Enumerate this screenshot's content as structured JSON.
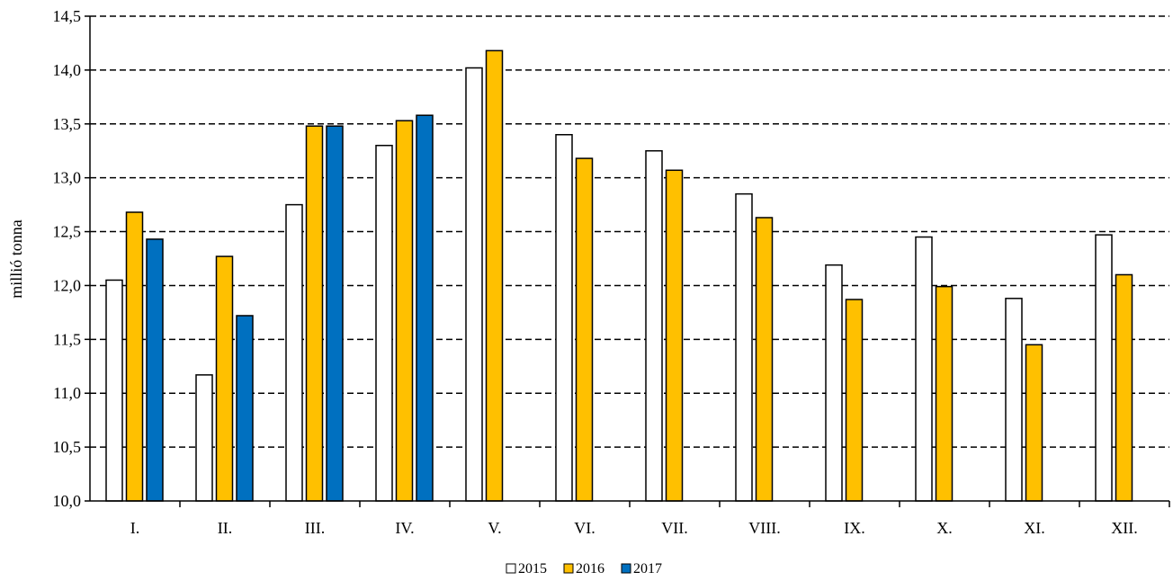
{
  "chart_data": {
    "type": "bar",
    "title": "",
    "xlabel": "",
    "ylabel": "millió  tonna",
    "ylim": [
      10.0,
      14.5
    ],
    "yticks": [
      "10,0",
      "10,5",
      "11,0",
      "11,5",
      "12,0",
      "12,5",
      "13,0",
      "13,5",
      "14,0",
      "14,5"
    ],
    "ytick_values": [
      10.0,
      10.5,
      11.0,
      11.5,
      12.0,
      12.5,
      13.0,
      13.5,
      14.0,
      14.5
    ],
    "grid": "horizontal dashed",
    "legend_position": "bottom-center",
    "categories": [
      "I.",
      "II.",
      "III.",
      "IV.",
      "V.",
      "VI.",
      "VII.",
      "VIII.",
      "IX.",
      "X.",
      "XI.",
      "XII."
    ],
    "series": [
      {
        "name": "2015",
        "color": "#ffffff",
        "values": [
          12.05,
          11.17,
          12.75,
          13.3,
          14.02,
          13.4,
          13.25,
          12.85,
          12.19,
          12.45,
          11.88,
          12.47
        ]
      },
      {
        "name": "2016",
        "color": "#ffc000",
        "values": [
          12.68,
          12.27,
          13.48,
          13.53,
          14.18,
          13.18,
          13.07,
          12.63,
          11.87,
          11.99,
          11.45,
          12.1
        ]
      },
      {
        "name": "2017",
        "color": "#0070c0",
        "values": [
          12.43,
          11.72,
          13.48,
          13.58,
          null,
          null,
          null,
          null,
          null,
          null,
          null,
          null
        ]
      }
    ]
  }
}
